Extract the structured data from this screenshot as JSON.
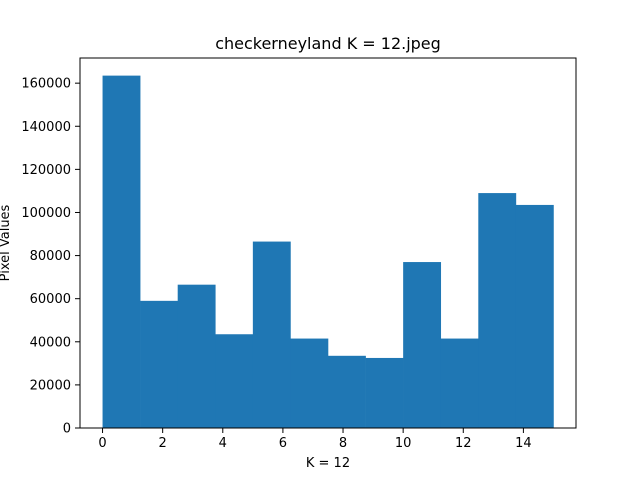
{
  "chart_data": {
    "type": "bar",
    "title": "checkerneyland K = 12.jpeg",
    "xlabel": "K = 12",
    "ylabel": "Pixel Values",
    "bin_edges": [
      0,
      1.25,
      2.5,
      3.75,
      5,
      6.25,
      7.5,
      8.75,
      10,
      11.25,
      12.5,
      13.75,
      15
    ],
    "values": [
      163500,
      59000,
      66500,
      43500,
      86500,
      41500,
      33500,
      32500,
      77000,
      41500,
      109000,
      103500
    ],
    "xlim": [
      -0.75,
      15.75
    ],
    "ylim": [
      0,
      171675
    ],
    "x_ticks": [
      0,
      2,
      4,
      6,
      8,
      10,
      12,
      14
    ],
    "x_tick_labels": [
      "0",
      "2",
      "4",
      "6",
      "8",
      "10",
      "12",
      "14"
    ],
    "y_ticks": [
      0,
      20000,
      40000,
      60000,
      80000,
      100000,
      120000,
      140000,
      160000
    ],
    "y_tick_labels": [
      "0",
      "20000",
      "40000",
      "60000",
      "80000",
      "100000",
      "120000",
      "140000",
      "160000"
    ],
    "bar_color": "#1f77b4",
    "grid": false,
    "legend": "none"
  }
}
